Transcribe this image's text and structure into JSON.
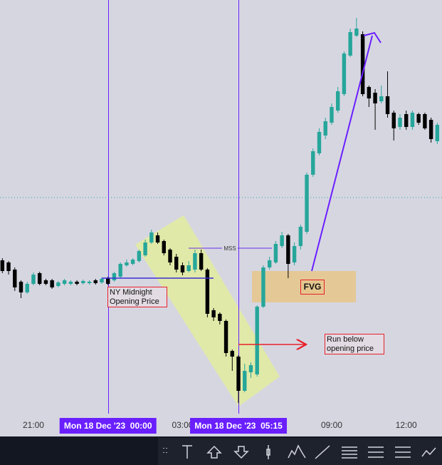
{
  "chart_data": {
    "type": "candlestick",
    "up_color": "#26a69a",
    "down_color": "#000000",
    "open": [
      235,
      232,
      222,
      205,
      190,
      202,
      217,
      207,
      207,
      199,
      202,
      202,
      205,
      203,
      203,
      207,
      204,
      210,
      207,
      212,
      228,
      230,
      234,
      242,
      260,
      270,
      262,
      250,
      240,
      228,
      220,
      222,
      245,
      222,
      165,
      160,
      150,
      108,
      100,
      52,
      78,
      75,
      170,
      225,
      232,
      255,
      270,
      232,
      255,
      275,
      355,
      385,
      410,
      428,
      445,
      468,
      522,
      550,
      552,
      478,
      470,
      458,
      465,
      442,
      422,
      440,
      422,
      440,
      440,
      432,
      402
    ],
    "high": [
      238,
      234,
      225,
      207,
      205,
      218,
      219,
      209,
      209,
      206,
      209,
      207,
      207,
      208,
      207,
      209,
      211,
      212,
      219,
      232,
      236,
      238,
      250,
      264,
      278,
      274,
      264,
      252,
      244,
      232,
      234,
      250,
      250,
      224,
      168,
      162,
      152,
      110,
      102,
      90,
      92,
      172,
      228,
      240,
      262,
      275,
      272,
      260,
      285,
      358,
      392,
      420,
      435,
      455,
      478,
      528,
      560,
      575,
      556,
      480,
      475,
      480,
      500,
      445,
      440,
      445,
      445,
      442,
      442,
      435,
      428
    ],
    "low": [
      217,
      215,
      192,
      182,
      188,
      200,
      200,
      200,
      195,
      197,
      200,
      200,
      200,
      201,
      201,
      201,
      202,
      200,
      205,
      210,
      226,
      228,
      232,
      240,
      258,
      258,
      242,
      228,
      218,
      214,
      218,
      218,
      220,
      155,
      150,
      145,
      100,
      80,
      35,
      50,
      70,
      72,
      168,
      222,
      230,
      252,
      210,
      228,
      250,
      272,
      352,
      382,
      405,
      425,
      442,
      465,
      520,
      548,
      465,
      450,
      418,
      455,
      435,
      403,
      418,
      418,
      418,
      425,
      418,
      400,
      398
    ],
    "close": [
      220,
      220,
      197,
      190,
      202,
      215,
      202,
      202,
      197,
      204,
      207,
      205,
      202,
      206,
      205,
      203,
      209,
      202,
      217,
      230,
      232,
      236,
      248,
      260,
      274,
      260,
      245,
      232,
      222,
      218,
      228,
      245,
      222,
      160,
      155,
      150,
      105,
      100,
      52,
      80,
      88,
      170,
      225,
      235,
      258,
      270,
      230,
      255,
      282,
      355,
      388,
      415,
      430,
      450,
      472,
      525,
      555,
      560,
      468,
      462,
      455,
      465,
      440,
      420,
      435,
      422,
      442,
      428,
      420,
      405,
      425
    ],
    "xlim": [
      -0.38,
      70.76
    ],
    "ylim": [
      0,
      600
    ],
    "xticks": [
      {
        "value": 5,
        "label": "21:00"
      },
      {
        "value": 29,
        "label": "03:00"
      },
      {
        "value": 53,
        "label": "09:00"
      },
      {
        "value": 65,
        "label": "12:00"
      }
    ],
    "markers": [
      {
        "value": 17,
        "label": "Mon 18 Dec '23  00:00"
      },
      {
        "value": 38,
        "label": "Mon 18 Dec '23  05:15"
      }
    ],
    "price_line": 323,
    "annotations": {
      "ny_midnight": [
        "NY Midnight",
        "Opening Price"
      ],
      "mss": "MSS",
      "fvg": "FVG",
      "run_below": [
        "Run below",
        "opening price"
      ]
    }
  }
}
